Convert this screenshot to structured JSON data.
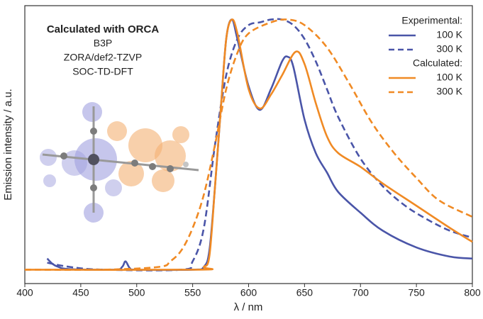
{
  "chart_data": {
    "type": "line",
    "xlabel": "λ / nm",
    "ylabel": "Emission intensity / a.u.",
    "annotation_title": "Calculated with ORCA",
    "annotation_lines": [
      "B3P",
      "ZORA/def2-TZVP",
      "SOC-TD-DFT"
    ],
    "legend_titles": [
      "Experimental:",
      "Calculated:"
    ],
    "legend": "upper right",
    "xlim": [
      400,
      800
    ],
    "xticks": [
      400,
      450,
      500,
      550,
      600,
      650,
      700,
      750,
      800
    ],
    "ylim": [
      0,
      1
    ],
    "series": [
      {
        "name": "100 K",
        "color": "#4a55a8",
        "style": "solid",
        "x": [
          420,
          425,
          430,
          440,
          480,
          487,
          490,
          494,
          500,
          550,
          560,
          565,
          570,
          575,
          580,
          585,
          590,
          600,
          610,
          620,
          630,
          635,
          640,
          650,
          660,
          670,
          680,
          700,
          720,
          750,
          780,
          800
        ],
        "values": [
          0.09,
          0.07,
          0.06,
          0.052,
          0.05,
          0.06,
          0.08,
          0.055,
          0.05,
          0.05,
          0.06,
          0.12,
          0.35,
          0.62,
          0.88,
          0.95,
          0.88,
          0.71,
          0.625,
          0.7,
          0.8,
          0.816,
          0.78,
          0.59,
          0.47,
          0.4,
          0.33,
          0.255,
          0.19,
          0.13,
          0.097,
          0.09
        ]
      },
      {
        "name": "300 K",
        "color": "#4a55a8",
        "style": "dashed",
        "x": [
          420,
          440,
          470,
          540,
          550,
          560,
          570,
          580,
          590,
          600,
          610,
          620,
          630,
          640,
          650,
          660,
          670,
          680,
          700,
          720,
          740,
          760,
          780,
          800
        ],
        "values": [
          0.075,
          0.06,
          0.05,
          0.05,
          0.08,
          0.2,
          0.5,
          0.75,
          0.88,
          0.93,
          0.94,
          0.95,
          0.95,
          0.93,
          0.88,
          0.8,
          0.7,
          0.6,
          0.45,
          0.35,
          0.28,
          0.23,
          0.19,
          0.165
        ]
      },
      {
        "name": "100 K",
        "color": "#f08a24",
        "style": "solid",
        "x": [
          400,
          555,
          560,
          565,
          570,
          575,
          580,
          585,
          590,
          600,
          610,
          620,
          630,
          642,
          650,
          660,
          670,
          680,
          700,
          720,
          750,
          780,
          800
        ],
        "values": [
          0.05,
          0.05,
          0.06,
          0.1,
          0.35,
          0.62,
          0.88,
          0.95,
          0.9,
          0.7,
          0.63,
          0.68,
          0.75,
          0.834,
          0.79,
          0.65,
          0.53,
          0.47,
          0.42,
          0.36,
          0.28,
          0.2,
          0.15
        ]
      },
      {
        "name": "300 K",
        "color": "#f08a24",
        "style": "dashed",
        "x": [
          400,
          470,
          520,
          530,
          540,
          550,
          560,
          570,
          580,
          590,
          600,
          620,
          635,
          650,
          670,
          690,
          710,
          730,
          750,
          770,
          800
        ],
        "values": [
          0.05,
          0.05,
          0.06,
          0.08,
          0.12,
          0.2,
          0.32,
          0.5,
          0.7,
          0.83,
          0.9,
          0.94,
          0.95,
          0.93,
          0.85,
          0.72,
          0.58,
          0.47,
          0.38,
          0.3,
          0.24
        ]
      }
    ]
  }
}
